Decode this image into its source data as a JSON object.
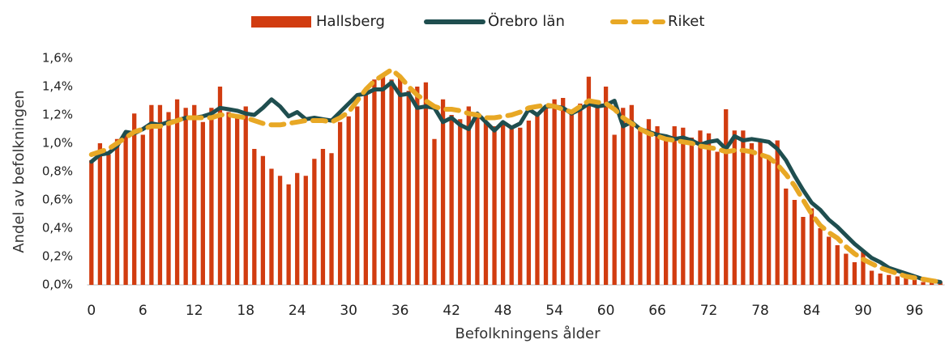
{
  "chart_data": {
    "type": "combo",
    "x_label": "Befolkningens ålder",
    "y_label": "Andel av befolkningen",
    "categories": [
      0,
      null,
      null,
      null,
      null,
      null,
      6,
      null,
      null,
      null,
      null,
      null,
      12,
      null,
      null,
      null,
      null,
      null,
      18,
      null,
      null,
      null,
      null,
      null,
      24,
      null,
      null,
      null,
      null,
      null,
      30,
      null,
      null,
      null,
      null,
      null,
      36,
      null,
      null,
      null,
      null,
      null,
      42,
      null,
      null,
      null,
      null,
      null,
      48,
      null,
      null,
      null,
      null,
      null,
      54,
      null,
      null,
      null,
      null,
      null,
      60,
      null,
      null,
      null,
      null,
      null,
      66,
      null,
      null,
      null,
      null,
      null,
      72,
      null,
      null,
      null,
      null,
      null,
      78,
      null,
      null,
      null,
      null,
      null,
      84,
      null,
      null,
      null,
      null,
      null,
      90,
      null,
      null,
      null,
      null,
      null,
      96,
      null,
      null,
      null
    ],
    "ylim": [
      0,
      1.6
    ],
    "yticks": [
      {
        "value": 0,
        "label": "0,0%"
      },
      {
        "value": 0.2,
        "label": "0,2%"
      },
      {
        "value": 0.4,
        "label": "0,4%"
      },
      {
        "value": 0.6,
        "label": "0,6%"
      },
      {
        "value": 0.8,
        "label": "0,8%"
      },
      {
        "value": 1.0,
        "label": "1,0%"
      },
      {
        "value": 1.2,
        "label": "1,2%"
      },
      {
        "value": 1.4,
        "label": "1,4%"
      },
      {
        "value": 1.6,
        "label": "1,6%"
      }
    ],
    "grid": false,
    "legend": "top",
    "series": [
      {
        "name": "Hallsberg",
        "type": "bar",
        "color": "#d13c10",
        "values": [
          0.88,
          1.0,
          0.92,
          1.03,
          1.07,
          1.21,
          1.06,
          1.27,
          1.27,
          1.22,
          1.31,
          1.25,
          1.27,
          1.15,
          1.25,
          1.4,
          1.22,
          1.2,
          1.26,
          0.96,
          0.91,
          0.82,
          0.77,
          0.71,
          0.79,
          0.77,
          0.89,
          0.96,
          0.93,
          1.15,
          1.19,
          1.26,
          1.35,
          1.45,
          1.47,
          1.45,
          1.47,
          1.37,
          1.4,
          1.43,
          1.03,
          1.31,
          1.2,
          1.17,
          1.26,
          1.2,
          1.15,
          1.12,
          1.14,
          1.12,
          1.11,
          1.16,
          1.2,
          1.25,
          1.31,
          1.32,
          1.22,
          1.28,
          1.47,
          1.25,
          1.4,
          1.06,
          1.25,
          1.27,
          1.1,
          1.17,
          1.12,
          1.04,
          1.12,
          1.11,
          1.04,
          1.09,
          1.07,
          0.94,
          1.24,
          1.09,
          1.09,
          1.0,
          1.01,
          0.91,
          1.02,
          0.68,
          0.6,
          0.48,
          0.54,
          0.4,
          0.34,
          0.28,
          0.22,
          0.16,
          0.24,
          0.1,
          0.08,
          0.07,
          0.06,
          0.05,
          0.04,
          0.02,
          0.02,
          0.02
        ]
      },
      {
        "name": "Örebro län",
        "type": "line",
        "dashed": false,
        "color": "#1f4e4f",
        "values": [
          0.87,
          0.92,
          0.93,
          0.98,
          1.08,
          1.07,
          1.1,
          1.14,
          1.13,
          1.15,
          1.16,
          1.18,
          1.18,
          1.19,
          1.21,
          1.25,
          1.24,
          1.23,
          1.21,
          1.2,
          1.25,
          1.31,
          1.26,
          1.19,
          1.22,
          1.17,
          1.18,
          1.17,
          1.16,
          1.22,
          1.28,
          1.34,
          1.35,
          1.38,
          1.38,
          1.43,
          1.34,
          1.35,
          1.25,
          1.26,
          1.25,
          1.15,
          1.18,
          1.13,
          1.1,
          1.21,
          1.15,
          1.09,
          1.15,
          1.11,
          1.14,
          1.24,
          1.2,
          1.26,
          1.26,
          1.25,
          1.21,
          1.24,
          1.28,
          1.26,
          1.27,
          1.3,
          1.12,
          1.15,
          1.1,
          1.08,
          1.06,
          1.05,
          1.03,
          1.04,
          1.02,
          0.99,
          1.01,
          1.02,
          0.96,
          1.05,
          1.02,
          1.03,
          1.02,
          1.01,
          0.96,
          0.88,
          0.77,
          0.67,
          0.58,
          0.53,
          0.46,
          0.41,
          0.35,
          0.29,
          0.24,
          0.19,
          0.16,
          0.12,
          0.1,
          0.08,
          0.06,
          0.04,
          0.03,
          0.02
        ]
      },
      {
        "name": "Riket",
        "type": "line",
        "dashed": true,
        "color": "#e8a825",
        "values": [
          0.92,
          0.94,
          0.96,
          1.0,
          1.04,
          1.08,
          1.1,
          1.12,
          1.12,
          1.14,
          1.16,
          1.18,
          1.18,
          1.18,
          1.18,
          1.2,
          1.2,
          1.19,
          1.18,
          1.16,
          1.14,
          1.13,
          1.13,
          1.14,
          1.15,
          1.16,
          1.16,
          1.16,
          1.15,
          1.18,
          1.22,
          1.3,
          1.38,
          1.44,
          1.48,
          1.52,
          1.47,
          1.4,
          1.34,
          1.3,
          1.26,
          1.24,
          1.24,
          1.23,
          1.21,
          1.2,
          1.18,
          1.18,
          1.19,
          1.2,
          1.22,
          1.25,
          1.26,
          1.27,
          1.26,
          1.24,
          1.22,
          1.26,
          1.3,
          1.29,
          1.28,
          1.24,
          1.18,
          1.14,
          1.1,
          1.07,
          1.05,
          1.03,
          1.02,
          1.01,
          1.0,
          0.98,
          0.97,
          0.96,
          0.94,
          0.95,
          0.95,
          0.94,
          0.92,
          0.9,
          0.85,
          0.78,
          0.7,
          0.6,
          0.5,
          0.42,
          0.37,
          0.33,
          0.27,
          0.22,
          0.18,
          0.15,
          0.12,
          0.1,
          0.08,
          0.06,
          0.05,
          0.04,
          0.03,
          0.02
        ]
      }
    ]
  }
}
